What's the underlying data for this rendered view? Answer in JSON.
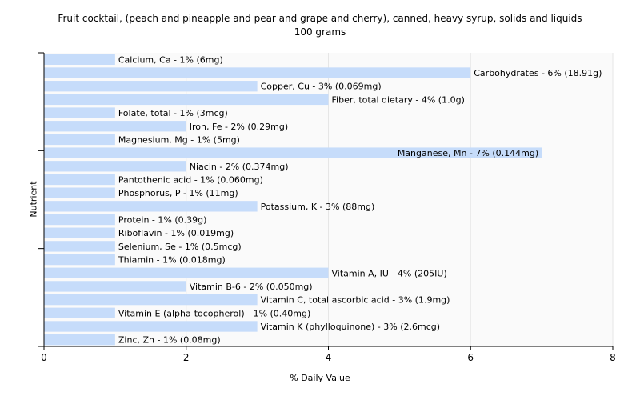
{
  "chart_data": {
    "type": "bar",
    "orientation": "horizontal",
    "title": "Fruit cocktail, (peach and pineapple and pear and grape and cherry), canned, heavy syrup, solids and liquids",
    "subtitle": "100 grams",
    "xlabel": "% Daily Value",
    "ylabel": "Nutrient",
    "xlim": [
      0,
      8
    ],
    "xticks": [
      0,
      2,
      4,
      6,
      8
    ],
    "grid": true,
    "bar_color": "#c6dcfa",
    "categories": [
      "Calcium, Ca",
      "Carbohydrates",
      "Copper, Cu",
      "Fiber, total dietary",
      "Folate, total",
      "Iron, Fe",
      "Magnesium, Mg",
      "Manganese, Mn",
      "Niacin",
      "Pantothenic acid",
      "Phosphorus, P",
      "Potassium, K",
      "Protein",
      "Riboflavin",
      "Selenium, Se",
      "Thiamin",
      "Vitamin A, IU",
      "Vitamin B-6",
      "Vitamin C, total ascorbic acid",
      "Vitamin E (alpha-tocopherol)",
      "Vitamin K (phylloquinone)",
      "Zinc, Zn"
    ],
    "values": [
      1,
      6,
      3,
      4,
      1,
      2,
      1,
      7,
      2,
      1,
      1,
      3,
      1,
      1,
      1,
      1,
      4,
      2,
      3,
      1,
      3,
      1
    ],
    "labels": [
      "Calcium, Ca - 1% (6mg)",
      "Carbohydrates - 6% (18.91g)",
      "Copper, Cu - 3% (0.069mg)",
      "Fiber, total dietary - 4% (1.0g)",
      "Folate, total - 1% (3mcg)",
      "Iron, Fe - 2% (0.29mg)",
      "Magnesium, Mg - 1% (5mg)",
      "Manganese, Mn - 7% (0.144mg)",
      "Niacin - 2% (0.374mg)",
      "Pantothenic acid - 1% (0.060mg)",
      "Phosphorus, P - 1% (11mg)",
      "Potassium, K - 3% (88mg)",
      "Protein - 1% (0.39g)",
      "Riboflavin - 1% (0.019mg)",
      "Selenium, Se - 1% (0.5mcg)",
      "Thiamin - 1% (0.018mg)",
      "Vitamin A, IU - 4% (205IU)",
      "Vitamin B-6 - 2% (0.050mg)",
      "Vitamin C, total ascorbic acid - 3% (1.9mg)",
      "Vitamin E (alpha-tocopherol) - 1% (0.40mg)",
      "Vitamin K (phylloquinone) - 3% (2.6mcg)",
      "Zinc, Zn - 1% (0.08mg)"
    ]
  }
}
